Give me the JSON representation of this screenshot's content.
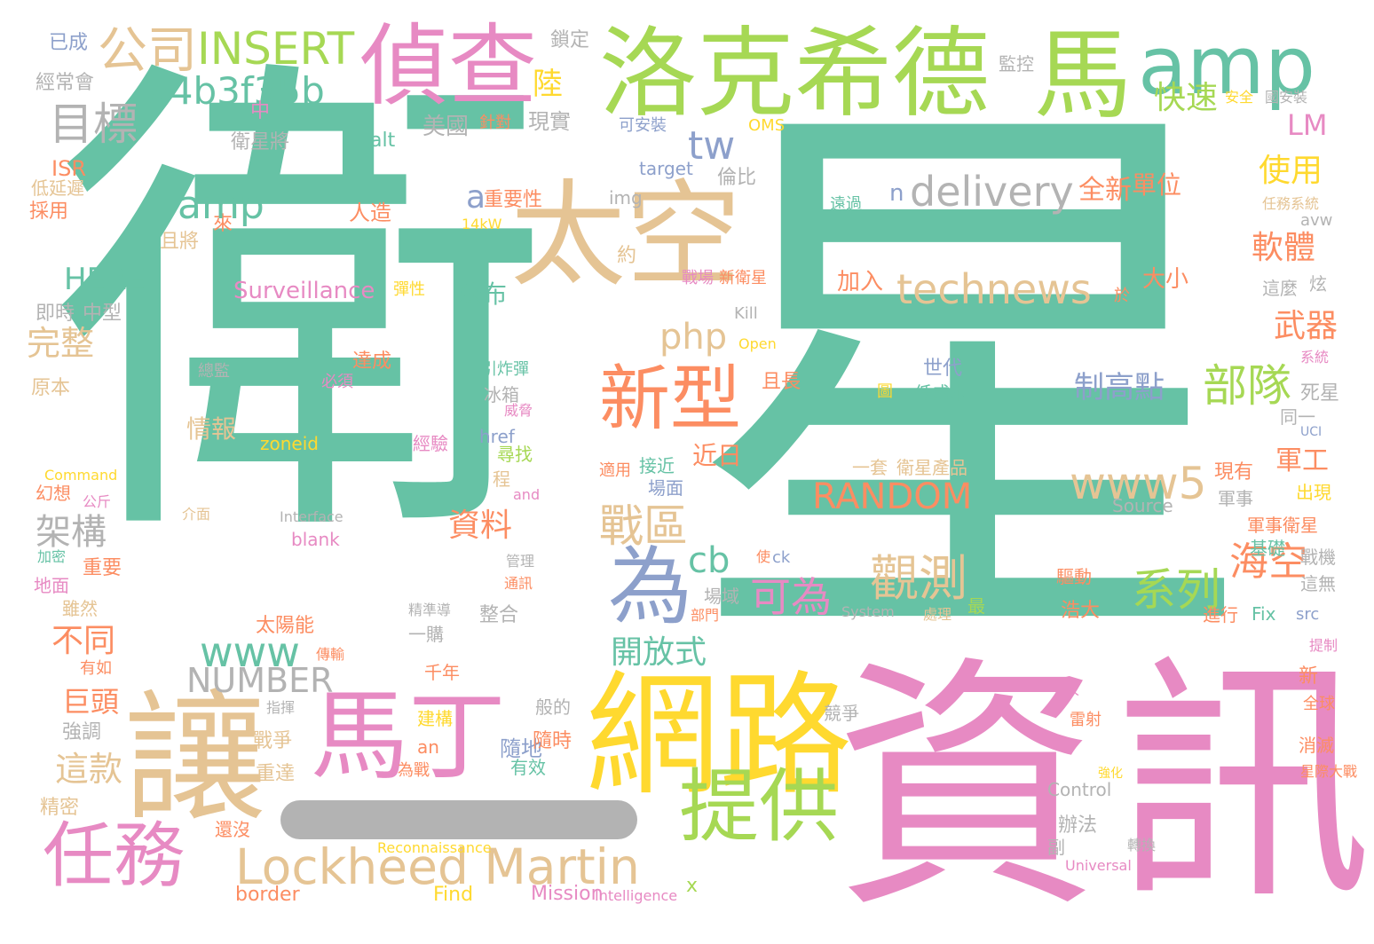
{
  "colors": {
    "teal": "#66c2a5",
    "orange": "#fc8d62",
    "blue": "#8da0cb",
    "pink": "#e78ac3",
    "green": "#a6d854",
    "yellow": "#ffd92f",
    "tan": "#e5c494",
    "gray": "#b3b3b3"
  },
  "words": [
    "衛",
    "星",
    "資",
    "訊",
    "網路",
    "讓",
    "洛克希德",
    "馬",
    "amp",
    "太空",
    "偵查",
    "公司",
    "INSERT",
    "a4b3f35b",
    "目標",
    "馬丁",
    "任務",
    "Lockheed Martin",
    "提供",
    "新型",
    "為",
    "technews",
    "delivery",
    "tw",
    "php",
    "www5",
    "RANDOM",
    "觀測",
    "系列",
    "部隊",
    "制高點",
    "戰區",
    "可為",
    "資料",
    "www",
    "NUMBER",
    "HERE",
    "Surveillance",
    "cb",
    "開放式",
    "海空",
    "軍工",
    "武器",
    "使用",
    "軟體",
    "快速",
    "LM",
    "全新",
    "單位",
    "大小",
    "加入",
    "這款",
    "架構",
    "完整",
    "不同",
    "巨頭",
    "情報",
    "公布",
    "近日",
    "陸",
    "現實",
    "美國",
    "經常會",
    "已成",
    "鎖定",
    "監控",
    "安全",
    "國安裝",
    "針對",
    "可安裝",
    "OMS",
    "alt",
    "ISR",
    "低延遲",
    "採用",
    "衛星將",
    "中",
    "來",
    "人造",
    "重要性",
    "img",
    "target",
    "倫比",
    "遠過",
    "任務系統",
    "avw",
    "14kW",
    "且將",
    "約",
    "戰場",
    "新衛星",
    "彈性",
    "中型",
    "即時",
    "Kill",
    "Open",
    "炫",
    "這麼",
    "於",
    "原本",
    "總監",
    "必須",
    "達成",
    "引炸彈",
    "冰箱",
    "威脅",
    "死星",
    "世代",
    "且長",
    "圖",
    "低成本",
    "系統",
    "同一",
    "UCI",
    "zoneid",
    "經驗",
    "href",
    "尋找",
    "程",
    "適用",
    "接近",
    "場面",
    "一套",
    "衛星產品",
    "現有",
    "Command",
    "幻想",
    "公斤",
    "and",
    "介面",
    "Interface",
    "Source",
    "軍事",
    "出現",
    "軍事衛星",
    "基礎",
    "blank",
    "加密",
    "重要",
    "管理",
    "通訊",
    "使",
    "ck",
    "戰機",
    "地面",
    "這無",
    "雖然",
    "精準導",
    "場域",
    "部門",
    "System",
    "最",
    "處理",
    "進行",
    "Fix",
    "src",
    "浩大",
    "驅動",
    "太陽能",
    "傳輸",
    "整合",
    "一購",
    "有如",
    "千年",
    "提制",
    "新",
    "般的",
    "指揮",
    "建構",
    "競爭",
    "人",
    "雷射",
    "全球",
    "強調",
    "戰爭",
    "an",
    "隨地",
    "隨時",
    "消滅",
    "重達",
    "為戰",
    "有效",
    "Control",
    "強化",
    "星際大戰",
    "精密",
    "還沒",
    "辦法",
    "副",
    "轉換",
    "Universal",
    "Reconnaissance",
    "border",
    "Find",
    "Mission",
    "Intelligence",
    "x",
    "n",
    "a",
    "amp"
  ]
}
